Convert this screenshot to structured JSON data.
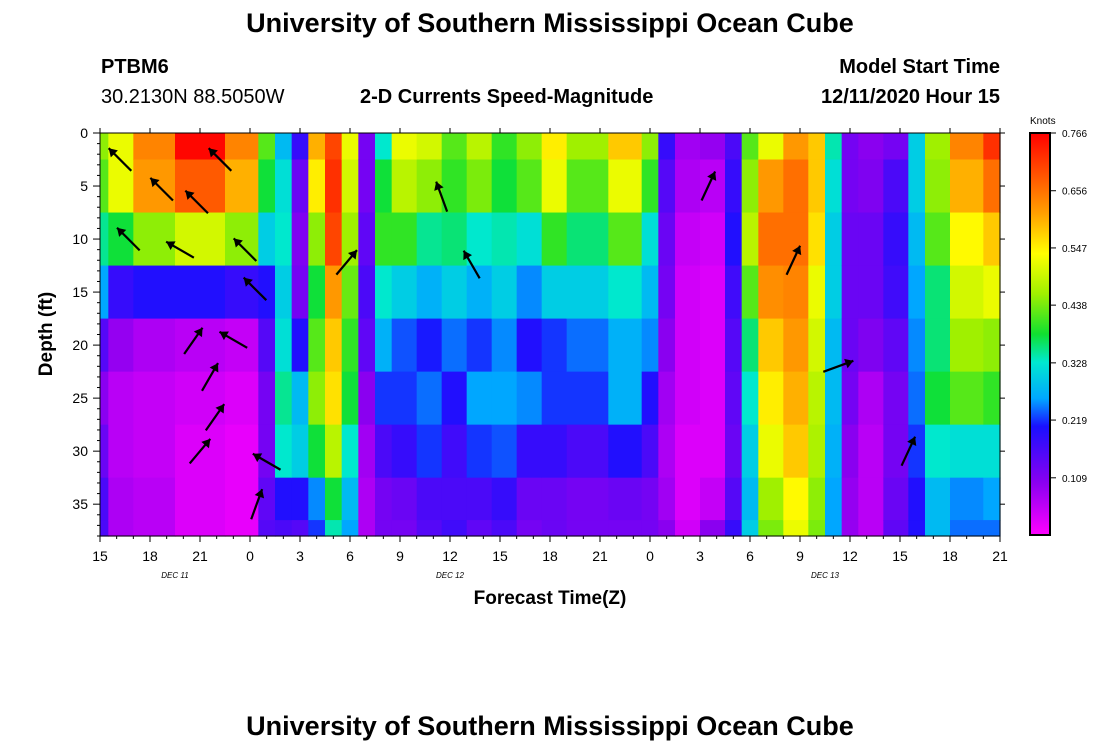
{
  "page": {
    "title": "University of Southern Mississippi Ocean Cube",
    "footer_title": "University of Southern Mississippi Ocean Cube",
    "station": "PTBM6",
    "location": "30.2130N 88.5050W",
    "subtitle": "2-D Currents Speed-Magnitude",
    "model_start_label": "Model Start Time",
    "model_start_value": "12/11/2020 Hour 15"
  },
  "chart_data": {
    "type": "heatmap",
    "title": "2-D Currents Speed-Magnitude",
    "xlabel": "Forecast Time(Z)",
    "ylabel": "Depth (ft)",
    "x_tick_labels": [
      "15",
      "18",
      "21",
      "0",
      "3",
      "6",
      "9",
      "12",
      "15",
      "18",
      "21",
      "0",
      "3",
      "6",
      "9",
      "12",
      "15",
      "18",
      "21"
    ],
    "day_labels": [
      {
        "label": "DEC 11",
        "at_tick": 1.5
      },
      {
        "label": "DEC 12",
        "at_tick": 7
      },
      {
        "label": "DEC 13",
        "at_tick": 14.5
      }
    ],
    "x_range_hours": [
      0,
      54
    ],
    "y_ticks": [
      0,
      5,
      10,
      15,
      20,
      25,
      30,
      35
    ],
    "ylim": [
      0,
      38
    ],
    "y_inverted": true,
    "colorbar": {
      "title": "Knots",
      "ticks": [
        0.766,
        0.656,
        0.547,
        0.438,
        0.328,
        0.219,
        0.109
      ],
      "range": [
        0,
        0.766
      ]
    },
    "speed_profiles": {
      "depths_ft": [
        0,
        5,
        10,
        15,
        20,
        25,
        30,
        35,
        38
      ],
      "columns": [
        {
          "hour": 0,
          "speed": [
            0.45,
            0.42,
            0.35,
            0.26,
            0.15,
            0.1,
            0.13,
            0.16,
            0.16
          ]
        },
        {
          "hour": 1,
          "speed": [
            0.52,
            0.52,
            0.38,
            0.18,
            0.09,
            0.06,
            0.06,
            0.07,
            0.07
          ]
        },
        {
          "hour": 3,
          "speed": [
            0.64,
            0.62,
            0.45,
            0.2,
            0.07,
            0.05,
            0.05,
            0.06,
            0.06
          ]
        },
        {
          "hour": 6,
          "speed": [
            0.76,
            0.68,
            0.5,
            0.2,
            0.06,
            0.04,
            0.03,
            0.03,
            0.03
          ]
        },
        {
          "hour": 9,
          "speed": [
            0.64,
            0.6,
            0.45,
            0.18,
            0.05,
            0.03,
            0.02,
            0.02,
            0.02
          ]
        },
        {
          "hour": 10,
          "speed": [
            0.42,
            0.38,
            0.3,
            0.2,
            0.15,
            0.12,
            0.12,
            0.14,
            0.15
          ]
        },
        {
          "hour": 11,
          "speed": [
            0.28,
            0.32,
            0.33,
            0.3,
            0.32,
            0.35,
            0.33,
            0.2,
            0.16
          ]
        },
        {
          "hour": 12,
          "speed": [
            0.18,
            0.13,
            0.11,
            0.12,
            0.2,
            0.28,
            0.3,
            0.2,
            0.15
          ]
        },
        {
          "hour": 13,
          "speed": [
            0.6,
            0.55,
            0.45,
            0.38,
            0.42,
            0.45,
            0.38,
            0.25,
            0.22
          ]
        },
        {
          "hour": 14,
          "speed": [
            0.7,
            0.72,
            0.7,
            0.62,
            0.58,
            0.56,
            0.48,
            0.38,
            0.34
          ]
        },
        {
          "hour": 15,
          "speed": [
            0.52,
            0.5,
            0.46,
            0.43,
            0.4,
            0.38,
            0.33,
            0.28,
            0.26
          ]
        },
        {
          "hour": 16,
          "speed": [
            0.12,
            0.12,
            0.14,
            0.16,
            0.14,
            0.1,
            0.08,
            0.07,
            0.07
          ]
        },
        {
          "hour": 17,
          "speed": [
            0.33,
            0.38,
            0.4,
            0.33,
            0.27,
            0.22,
            0.16,
            0.12,
            0.12
          ]
        },
        {
          "hour": 18,
          "speed": [
            0.52,
            0.48,
            0.4,
            0.3,
            0.23,
            0.22,
            0.18,
            0.13,
            0.12
          ]
        },
        {
          "hour": 20,
          "speed": [
            0.5,
            0.45,
            0.35,
            0.27,
            0.21,
            0.24,
            0.22,
            0.16,
            0.15
          ]
        },
        {
          "hour": 21,
          "speed": [
            0.42,
            0.4,
            0.36,
            0.3,
            0.24,
            0.2,
            0.17,
            0.16,
            0.17
          ]
        },
        {
          "hour": 23,
          "speed": [
            0.48,
            0.44,
            0.33,
            0.27,
            0.22,
            0.26,
            0.22,
            0.16,
            0.14
          ]
        },
        {
          "hour": 24,
          "speed": [
            0.4,
            0.38,
            0.34,
            0.3,
            0.25,
            0.26,
            0.23,
            0.18,
            0.16
          ]
        },
        {
          "hour": 26,
          "speed": [
            0.45,
            0.42,
            0.32,
            0.25,
            0.2,
            0.25,
            0.18,
            0.13,
            0.12
          ]
        },
        {
          "hour": 27,
          "speed": [
            0.55,
            0.52,
            0.4,
            0.3,
            0.22,
            0.22,
            0.18,
            0.13,
            0.13
          ]
        },
        {
          "hour": 29,
          "speed": [
            0.46,
            0.42,
            0.36,
            0.3,
            0.24,
            0.22,
            0.16,
            0.12,
            0.12
          ]
        },
        {
          "hour": 32,
          "speed": [
            0.58,
            0.52,
            0.42,
            0.33,
            0.27,
            0.27,
            0.2,
            0.13,
            0.12
          ]
        },
        {
          "hour": 33,
          "speed": [
            0.45,
            0.4,
            0.32,
            0.28,
            0.25,
            0.2,
            0.16,
            0.12,
            0.12
          ]
        },
        {
          "hour": 34,
          "speed": [
            0.18,
            0.15,
            0.13,
            0.12,
            0.1,
            0.08,
            0.07,
            0.08,
            0.1
          ]
        },
        {
          "hour": 35,
          "speed": [
            0.08,
            0.07,
            0.05,
            0.04,
            0.04,
            0.04,
            0.03,
            0.03,
            0.04
          ]
        },
        {
          "hour": 37,
          "speed": [
            0.09,
            0.06,
            0.04,
            0.03,
            0.03,
            0.03,
            0.03,
            0.05,
            0.1
          ]
        },
        {
          "hour": 38,
          "speed": [
            0.16,
            0.18,
            0.2,
            0.17,
            0.15,
            0.14,
            0.13,
            0.15,
            0.18
          ]
        },
        {
          "hour": 39,
          "speed": [
            0.42,
            0.45,
            0.48,
            0.42,
            0.36,
            0.33,
            0.3,
            0.28,
            0.3
          ]
        },
        {
          "hour": 40,
          "speed": [
            0.52,
            0.62,
            0.66,
            0.63,
            0.58,
            0.55,
            0.52,
            0.46,
            0.44
          ]
        },
        {
          "hour": 42,
          "speed": [
            0.62,
            0.66,
            0.66,
            0.64,
            0.62,
            0.6,
            0.58,
            0.54,
            0.52
          ]
        },
        {
          "hour": 43,
          "speed": [
            0.58,
            0.58,
            0.56,
            0.52,
            0.5,
            0.48,
            0.47,
            0.45,
            0.44
          ]
        },
        {
          "hour": 44,
          "speed": [
            0.34,
            0.32,
            0.3,
            0.3,
            0.28,
            0.28,
            0.27,
            0.26,
            0.26
          ]
        },
        {
          "hour": 45,
          "speed": [
            0.12,
            0.12,
            0.13,
            0.13,
            0.13,
            0.12,
            0.1,
            0.09,
            0.09
          ]
        },
        {
          "hour": 46,
          "speed": [
            0.1,
            0.11,
            0.13,
            0.13,
            0.11,
            0.07,
            0.06,
            0.06,
            0.06
          ]
        },
        {
          "hour": 48,
          "speed": [
            0.12,
            0.16,
            0.18,
            0.17,
            0.14,
            0.12,
            0.12,
            0.13,
            0.14
          ]
        },
        {
          "hour": 49,
          "speed": [
            0.3,
            0.3,
            0.28,
            0.26,
            0.25,
            0.24,
            0.22,
            0.2,
            0.2
          ]
        },
        {
          "hour": 50,
          "speed": [
            0.46,
            0.45,
            0.42,
            0.36,
            0.36,
            0.38,
            0.33,
            0.28,
            0.28
          ]
        },
        {
          "hour": 52,
          "speed": [
            0.64,
            0.6,
            0.54,
            0.5,
            0.46,
            0.42,
            0.32,
            0.25,
            0.24
          ]
        },
        {
          "hour": 54,
          "speed": [
            0.72,
            0.66,
            0.58,
            0.52,
            0.45,
            0.4,
            0.32,
            0.26,
            0.24
          ]
        }
      ]
    },
    "vectors": [
      {
        "hour": 1.2,
        "depth": 2.5,
        "dir_deg": 315
      },
      {
        "hour": 7.2,
        "depth": 2.5,
        "dir_deg": 315
      },
      {
        "hour": 3.7,
        "depth": 5.3,
        "dir_deg": 315
      },
      {
        "hour": 5.8,
        "depth": 6.5,
        "dir_deg": 315
      },
      {
        "hour": 1.7,
        "depth": 10.0,
        "dir_deg": 315
      },
      {
        "hour": 4.8,
        "depth": 11.0,
        "dir_deg": 300
      },
      {
        "hour": 8.7,
        "depth": 11.0,
        "dir_deg": 315
      },
      {
        "hour": 9.3,
        "depth": 14.7,
        "dir_deg": 315
      },
      {
        "hour": 5.6,
        "depth": 19.6,
        "dir_deg": 35
      },
      {
        "hour": 8.0,
        "depth": 19.5,
        "dir_deg": 300
      },
      {
        "hour": 6.6,
        "depth": 23.0,
        "dir_deg": 30
      },
      {
        "hour": 6.9,
        "depth": 26.8,
        "dir_deg": 35
      },
      {
        "hour": 6.0,
        "depth": 30.0,
        "dir_deg": 40
      },
      {
        "hour": 10.0,
        "depth": 31.0,
        "dir_deg": 300
      },
      {
        "hour": 9.4,
        "depth": 35.0,
        "dir_deg": 20
      },
      {
        "hour": 14.8,
        "depth": 12.2,
        "dir_deg": 40
      },
      {
        "hour": 20.5,
        "depth": 6.0,
        "dir_deg": 340
      },
      {
        "hour": 22.3,
        "depth": 12.4,
        "dir_deg": 330
      },
      {
        "hour": 36.5,
        "depth": 5.0,
        "dir_deg": 25
      },
      {
        "hour": 41.6,
        "depth": 12.0,
        "dir_deg": 25
      },
      {
        "hour": 44.3,
        "depth": 22.0,
        "dir_deg": 70
      },
      {
        "hour": 48.5,
        "depth": 30.0,
        "dir_deg": 25
      }
    ]
  }
}
